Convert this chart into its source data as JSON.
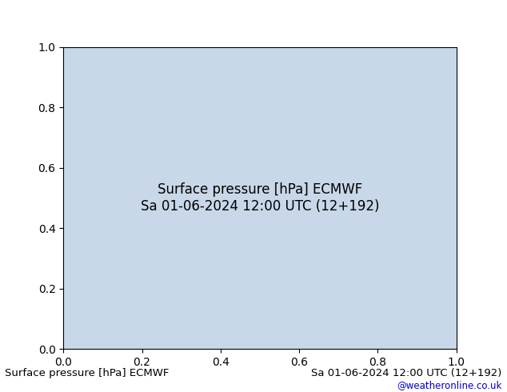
{
  "title_left": "Surface pressure [hPa] ECMWF",
  "title_right": "Sa 01-06-2024 12:00 UTC (12+192)",
  "copyright": "@weatheronline.co.uk",
  "background_color": "#ffffff",
  "land_color": "#b8e0a0",
  "ocean_color": "#d8d8d8",
  "deep_south_ocean_color": "#6080c0",
  "contour_black": "#000000",
  "contour_red": "#cc0000",
  "contour_blue": "#0000cc",
  "label_color_left": "#000000",
  "label_color_right": "#000000",
  "copyright_color": "#0000cc",
  "fig_width": 6.34,
  "fig_height": 4.9,
  "dpi": 100,
  "map_bg": "#f0f0f0",
  "title_fontsize": 9.5,
  "copyright_fontsize": 8.5
}
